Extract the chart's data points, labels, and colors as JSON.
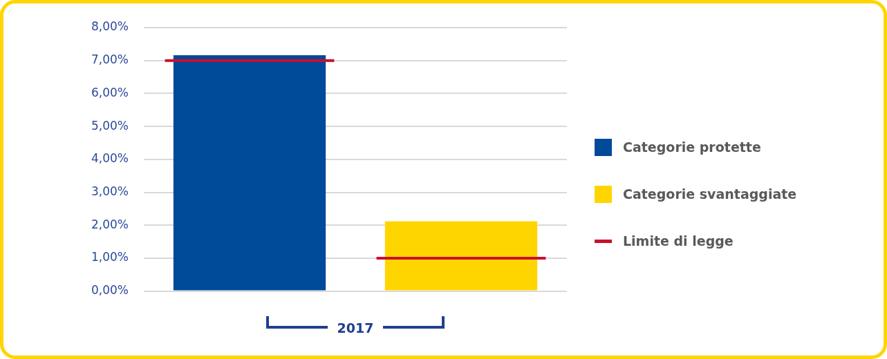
{
  "chart_data": {
    "type": "bar",
    "categories": [
      null,
      null
    ],
    "xlabel": "2017",
    "stacked": true,
    "series": [
      {
        "name": "Categorie protette",
        "color": "#004a9a",
        "values": [
          7.16,
          null
        ]
      },
      {
        "name": "Categorie svantaggiate",
        "color": "#ffd500",
        "values": [
          null,
          2.12
        ]
      }
    ],
    "ref_lines": [
      {
        "axis": "y",
        "value": 7,
        "label": "Limite di legge",
        "color": "#c8102e"
      },
      {
        "axis": "y",
        "value": 1,
        "label": null,
        "color": "#c8102e"
      }
    ],
    "ylim": [
      0,
      8
    ],
    "yticks": [
      {
        "value": 0,
        "label": "0,00%"
      },
      {
        "value": 1,
        "label": "1,00%"
      },
      {
        "value": 2,
        "label": "2,00%"
      },
      {
        "value": 3,
        "label": "3,00%"
      },
      {
        "value": 4,
        "label": "4,00%"
      },
      {
        "value": 5,
        "label": "5,00%"
      },
      {
        "value": 6,
        "label": "6,00%"
      },
      {
        "value": 7,
        "label": "7,00%"
      },
      {
        "value": 8,
        "label": "8,00%"
      }
    ],
    "grid": "y",
    "legend": "right"
  }
}
